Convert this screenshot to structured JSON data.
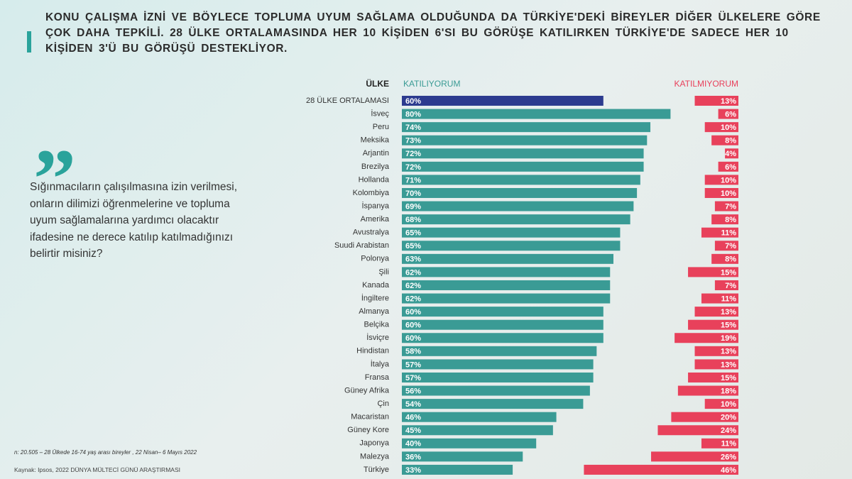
{
  "header": {
    "title": "KONU ÇALIŞMA İZNİ VE BÖYLECE TOPLUMA UYUM SAĞLAMA OLDUĞUNDA DA TÜRKİYE'DEKİ BİREYLER DİĞER ÜLKELERE GÖRE ÇOK DAHA TEPKİLİ. 28 ÜLKE ORTALAMASINDA HER 10 KİŞİDEN 6'SI BU GÖRÜŞE KATILIRKEN TÜRKİYE'DE SADECE HER 10 KİŞİDEN 3'Ü BU GÖRÜŞÜ DESTEKLİYOR."
  },
  "quote": {
    "mark": "„",
    "text": "Sığınmacıların çalışılmasına izin verilmesi, onların dilimizi öğrenmelerine ve topluma uyum sağlamalarına yardımcı olacaktır ifadesine ne derece katılıp katılmadığınızı belirtir misiniz?"
  },
  "footnote": "n: 20.505 – 28 Ülkede 16-74 yaş arası bireyler , 22 Nisan– 6 Mayıs 2022",
  "source": "Kaynak: Ipsos, 2022 DÜNYA MÜLTECİ GÜNÜ ARAŞTIRMASI",
  "chart_data": {
    "type": "bar",
    "orientation": "horizontal",
    "category_header": "ÜLKE",
    "categories": [
      "28 ÜLKE ORTALAMASI",
      "İsveç",
      "Peru",
      "Meksika",
      "Arjantin",
      "Brezilya",
      "Hollanda",
      "Kolombiya",
      "İspanya",
      "Amerika",
      "Avustralya",
      "Suudi Arabistan",
      "Polonya",
      "Şili",
      "Kanada",
      "İngiltere",
      "Almanya",
      "Belçika",
      "İsviçre",
      "Hindistan",
      "İtalya",
      "Fransa",
      "Güney Afrika",
      "Çin",
      "Macaristan",
      "Güney Kore",
      "Japonya",
      "Malezya",
      "Türkiye"
    ],
    "series": [
      {
        "name": "KATILIYORUM",
        "color": "#3a9b95",
        "colors": [
          "#2c3b8f",
          "#3a9b95",
          "#3a9b95",
          "#3a9b95",
          "#3a9b95",
          "#3a9b95",
          "#3a9b95",
          "#3a9b95",
          "#3a9b95",
          "#3a9b95",
          "#3a9b95",
          "#3a9b95",
          "#3a9b95",
          "#3a9b95",
          "#3a9b95",
          "#3a9b95",
          "#3a9b95",
          "#3a9b95",
          "#3a9b95",
          "#3a9b95",
          "#3a9b95",
          "#3a9b95",
          "#3a9b95",
          "#3a9b95",
          "#3a9b95",
          "#3a9b95",
          "#3a9b95",
          "#3a9b95",
          "#3a9b95"
        ],
        "values": [
          60,
          80,
          74,
          73,
          72,
          72,
          71,
          70,
          69,
          68,
          65,
          65,
          63,
          62,
          62,
          62,
          60,
          60,
          60,
          58,
          57,
          57,
          56,
          54,
          46,
          45,
          40,
          36,
          33
        ],
        "value_labels": [
          "60%",
          "80%",
          "74%",
          "73%",
          "72%",
          "72%",
          "71%",
          "70%",
          "69%",
          "68%",
          "65%",
          "65%",
          "63%",
          "62%",
          "62%",
          "62%",
          "60%",
          "60%",
          "60%",
          "58%",
          "57%",
          "57%",
          "56%",
          "54%",
          "46%",
          "45%",
          "40%",
          "36%",
          "33%"
        ]
      },
      {
        "name": "KATILMIYORUM",
        "color": "#e8415b",
        "values": [
          13,
          6,
          10,
          8,
          4,
          6,
          10,
          10,
          7,
          8,
          11,
          7,
          8,
          15,
          7,
          11,
          13,
          15,
          19,
          13,
          13,
          15,
          18,
          10,
          20,
          24,
          11,
          26,
          46
        ],
        "value_labels": [
          "13%",
          "6%",
          "10%",
          "8%",
          "4%",
          "6%",
          "10%",
          "10%",
          "7%",
          "8%",
          "11%",
          "7%",
          "8%",
          "15%",
          "7%",
          "11%",
          "13%",
          "15%",
          "19%",
          "13%",
          "13%",
          "15%",
          "18%",
          "10%",
          "20%",
          "24%",
          "11%",
          "26%",
          "46%"
        ]
      }
    ]
  }
}
